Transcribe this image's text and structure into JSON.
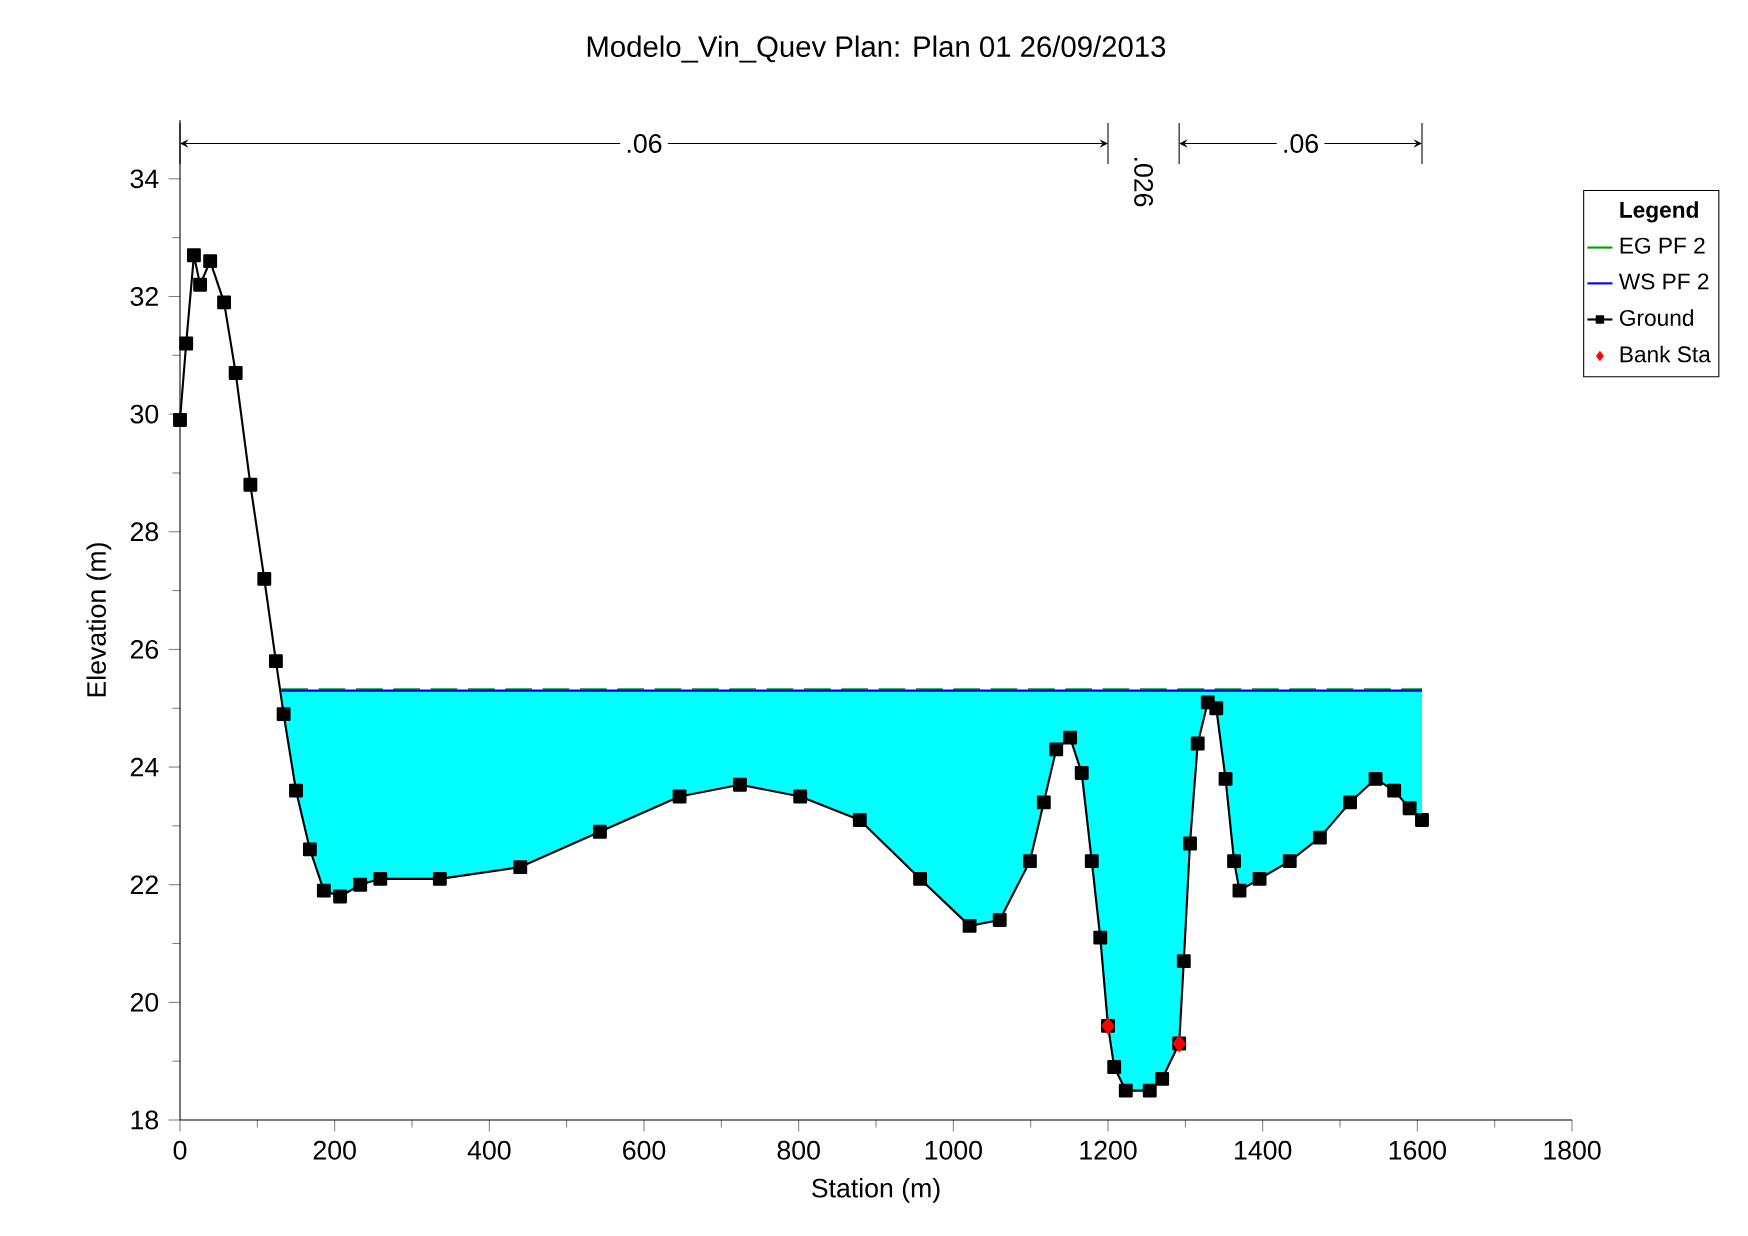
{
  "chart_data": {
    "type": "line",
    "title": "Modelo_Vin_Quev        Plan: Plan 01        26/09/2013",
    "xlabel": "Station (m)",
    "ylabel": "Elevation (m)",
    "legend_title": "Legend",
    "xlim": [
      0,
      1800
    ],
    "xticks": [
      0,
      200,
      400,
      600,
      800,
      1000,
      1200,
      1400,
      1600,
      1800
    ],
    "ylim": [
      18,
      35
    ],
    "yticks": [
      18,
      20,
      22,
      24,
      26,
      28,
      30,
      32,
      34
    ],
    "grid": false,
    "legend": "right",
    "annotations": [
      ".06",
      ".026",
      ".06"
    ],
    "series": [
      {
        "name": "EG PF 2",
        "color": "#00a000",
        "line_style": "dashed",
        "x": [
          131,
          1606
        ],
        "values": [
          25.32,
          25.32
        ]
      },
      {
        "name": "WS PF 2",
        "color": "#0000ff",
        "x": [
          131,
          134,
          150,
          168,
          186,
          207,
          233,
          259,
          336,
          440,
          543,
          646,
          724,
          802,
          879,
          957,
          1021,
          1060,
          1099,
          1117,
          1133,
          1151,
          1166,
          1179,
          1190,
          1200,
          1208,
          1223,
          1254,
          1270,
          1292,
          1298,
          1306,
          1316,
          1329,
          1340,
          1352,
          1363,
          1370,
          1396,
          1435,
          1474,
          1513,
          1546,
          1570,
          1590,
          1606
        ],
        "values": [
          25.3,
          25.3,
          25.3,
          25.3,
          25.3,
          25.3,
          25.3,
          25.3,
          25.3,
          25.3,
          25.3,
          25.3,
          25.3,
          25.3,
          25.3,
          25.3,
          25.3,
          25.3,
          25.3,
          25.3,
          25.3,
          25.3,
          25.3,
          25.3,
          25.3,
          25.3,
          25.3,
          25.3,
          25.3,
          25.3,
          25.3,
          25.3,
          25.3,
          25.3,
          25.3,
          25.3,
          25.3,
          25.3,
          25.3,
          25.3,
          25.3,
          25.3,
          25.3,
          25.3,
          25.3,
          25.3,
          25.3
        ],
        "upper": [
          25.3,
          25.3,
          25.3,
          25.3,
          25.3,
          25.3,
          25.3,
          25.3,
          25.3,
          25.3,
          25.3,
          25.3,
          25.3,
          25.3,
          25.3,
          25.3,
          25.3,
          25.3,
          25.3,
          25.3,
          25.3,
          25.3,
          25.3,
          25.3,
          25.3,
          25.3,
          25.3,
          25.3,
          25.3,
          25.3,
          25.3,
          25.3,
          25.3,
          25.3,
          25.3,
          25.3,
          25.3,
          25.3,
          25.3,
          25.3,
          25.3,
          25.3,
          25.3,
          25.3,
          25.3,
          25.3,
          25.3
        ],
        "lower": [
          25.3,
          24.9,
          23.6,
          22.6,
          21.9,
          21.8,
          22.0,
          22.1,
          22.1,
          22.3,
          22.9,
          23.5,
          23.7,
          23.5,
          23.1,
          22.1,
          21.3,
          21.4,
          22.4,
          23.4,
          24.3,
          24.5,
          23.9,
          22.4,
          21.1,
          19.6,
          18.9,
          18.5,
          18.5,
          18.7,
          19.3,
          20.7,
          22.7,
          24.4,
          25.1,
          25.0,
          23.8,
          22.4,
          21.9,
          22.1,
          22.4,
          22.8,
          23.4,
          23.8,
          23.6,
          23.3,
          23.1
        ]
      },
      {
        "name": "Ground",
        "color": "#000000",
        "marker": "square",
        "x": [
          0,
          8,
          18,
          26,
          39,
          57,
          72,
          91,
          109,
          124,
          134,
          150,
          168,
          186,
          207,
          233,
          259,
          336,
          440,
          543,
          646,
          724,
          802,
          879,
          957,
          1021,
          1060,
          1099,
          1117,
          1133,
          1151,
          1166,
          1179,
          1190,
          1200,
          1208,
          1223,
          1254,
          1270,
          1292,
          1298,
          1306,
          1316,
          1329,
          1340,
          1352,
          1363,
          1370,
          1396,
          1435,
          1474,
          1513,
          1546,
          1570,
          1590,
          1606
        ],
        "values": [
          29.9,
          31.2,
          32.7,
          32.2,
          32.6,
          31.9,
          30.7,
          28.8,
          27.2,
          25.8,
          24.9,
          23.6,
          22.6,
          21.9,
          21.8,
          22.0,
          22.1,
          22.1,
          22.3,
          22.9,
          23.5,
          23.7,
          23.5,
          23.1,
          22.1,
          21.3,
          21.4,
          22.4,
          23.4,
          24.3,
          24.5,
          23.9,
          22.4,
          21.1,
          19.6,
          18.9,
          18.5,
          18.5,
          18.7,
          19.3,
          20.7,
          22.7,
          24.4,
          25.1,
          25.0,
          23.8,
          22.4,
          21.9,
          22.1,
          22.4,
          22.8,
          23.4,
          23.8,
          23.6,
          23.3,
          23.1
        ]
      },
      {
        "name": "Bank Sta",
        "type": "scatter",
        "color": "#ff0000",
        "marker": "diamond",
        "x": [
          1200,
          1292
        ],
        "values": [
          19.6,
          19.3
        ]
      }
    ]
  }
}
